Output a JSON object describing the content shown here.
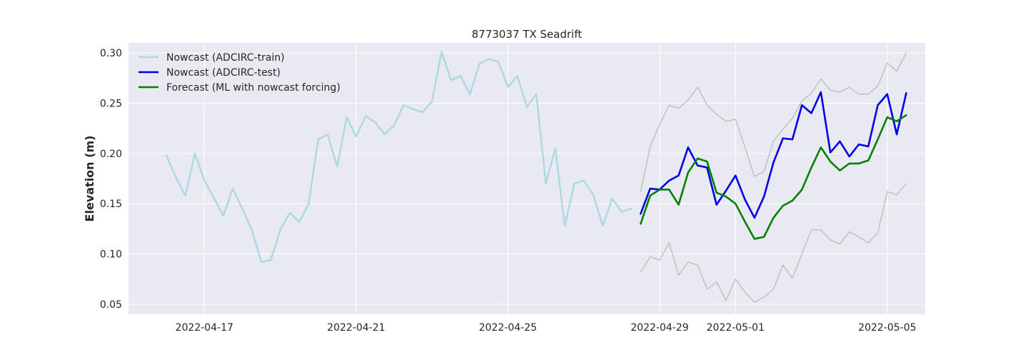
{
  "chart_data": {
    "type": "line",
    "title": "8773037 TX Seadrift",
    "xlabel": "",
    "ylabel": "Elevation (m)",
    "x_ticks": [
      "2022-04-17",
      "2022-04-21",
      "2022-04-25",
      "2022-04-29",
      "2022-05-01",
      "2022-05-05"
    ],
    "y_ticks": [
      "0.05",
      "0.10",
      "0.15",
      "0.20",
      "0.25",
      "0.30"
    ],
    "xlim": [
      "2022-04-15",
      "2022-05-06"
    ],
    "ylim": [
      0.04,
      0.31
    ],
    "grid": true,
    "legend_position": "top-left",
    "style": {
      "background": "#e9e9f1",
      "grid_color": "#ffffff"
    },
    "series": [
      {
        "name": "Nowcast (ADCIRC-train)",
        "color": "#add8e6",
        "width": 2.5,
        "in_legend": true,
        "x": [
          "2022-04-16 00:00",
          "2022-04-16 06:00",
          "2022-04-16 12:00",
          "2022-04-16 18:00",
          "2022-04-17 00:00",
          "2022-04-17 06:00",
          "2022-04-17 12:00",
          "2022-04-17 18:00",
          "2022-04-18 00:00",
          "2022-04-18 06:00",
          "2022-04-18 12:00",
          "2022-04-18 18:00",
          "2022-04-19 00:00",
          "2022-04-19 06:00",
          "2022-04-19 12:00",
          "2022-04-19 18:00",
          "2022-04-20 00:00",
          "2022-04-20 06:00",
          "2022-04-20 12:00",
          "2022-04-20 18:00",
          "2022-04-21 00:00",
          "2022-04-21 06:00",
          "2022-04-21 12:00",
          "2022-04-21 18:00",
          "2022-04-22 00:00",
          "2022-04-22 06:00",
          "2022-04-22 12:00",
          "2022-04-22 18:00",
          "2022-04-23 00:00",
          "2022-04-23 06:00",
          "2022-04-23 12:00",
          "2022-04-23 18:00",
          "2022-04-24 00:00",
          "2022-04-24 06:00",
          "2022-04-24 12:00",
          "2022-04-24 18:00",
          "2022-04-25 00:00",
          "2022-04-25 06:00",
          "2022-04-25 12:00",
          "2022-04-25 18:00",
          "2022-04-26 00:00",
          "2022-04-26 06:00",
          "2022-04-26 12:00",
          "2022-04-26 18:00",
          "2022-04-27 00:00",
          "2022-04-27 06:00",
          "2022-04-27 12:00",
          "2022-04-27 18:00",
          "2022-04-28 00:00",
          "2022-04-28 06:00"
        ],
        "values": [
          0.198,
          0.176,
          0.158,
          0.2,
          0.173,
          0.156,
          0.138,
          0.165,
          0.145,
          0.124,
          0.092,
          0.094,
          0.124,
          0.141,
          0.132,
          0.15,
          0.214,
          0.219,
          0.187,
          0.236,
          0.217,
          0.237,
          0.231,
          0.219,
          0.228,
          0.248,
          0.244,
          0.241,
          0.252,
          0.301,
          0.273,
          0.277,
          0.259,
          0.289,
          0.294,
          0.291,
          0.266,
          0.277,
          0.246,
          0.259,
          0.17,
          0.205,
          0.128,
          0.17,
          0.173,
          0.159,
          0.128,
          0.155,
          0.142,
          0.145
        ]
      },
      {
        "name": "Upper bound",
        "color": "#b7b7bb",
        "width": 1.2,
        "in_legend": false,
        "x": [
          "2022-04-28 12:00",
          "2022-04-28 18:00",
          "2022-04-29 00:00",
          "2022-04-29 06:00",
          "2022-04-29 12:00",
          "2022-04-29 18:00",
          "2022-04-30 00:00",
          "2022-04-30 06:00",
          "2022-04-30 12:00",
          "2022-04-30 18:00",
          "2022-05-01 00:00",
          "2022-05-01 06:00",
          "2022-05-01 12:00",
          "2022-05-01 18:00",
          "2022-05-02 00:00",
          "2022-05-02 06:00",
          "2022-05-02 12:00",
          "2022-05-02 18:00",
          "2022-05-03 00:00",
          "2022-05-03 06:00",
          "2022-05-03 12:00",
          "2022-05-03 18:00",
          "2022-05-04 00:00",
          "2022-05-04 06:00",
          "2022-05-04 12:00",
          "2022-05-04 18:00",
          "2022-05-05 00:00",
          "2022-05-05 06:00",
          "2022-05-05 12:00"
        ],
        "values": [
          0.162,
          0.207,
          0.229,
          0.248,
          0.245,
          0.253,
          0.266,
          0.248,
          0.239,
          0.232,
          0.234,
          0.206,
          0.177,
          0.182,
          0.212,
          0.224,
          0.235,
          0.252,
          0.26,
          0.274,
          0.263,
          0.261,
          0.266,
          0.259,
          0.259,
          0.267,
          0.29,
          0.282,
          0.3
        ]
      },
      {
        "name": "Lower bound",
        "color": "#b7b7bb",
        "width": 1.2,
        "in_legend": false,
        "x": [
          "2022-04-28 12:00",
          "2022-04-28 18:00",
          "2022-04-29 00:00",
          "2022-04-29 06:00",
          "2022-04-29 12:00",
          "2022-04-29 18:00",
          "2022-04-30 00:00",
          "2022-04-30 06:00",
          "2022-04-30 12:00",
          "2022-04-30 18:00",
          "2022-05-01 00:00",
          "2022-05-01 06:00",
          "2022-05-01 12:00",
          "2022-05-01 18:00",
          "2022-05-02 00:00",
          "2022-05-02 06:00",
          "2022-05-02 12:00",
          "2022-05-02 18:00",
          "2022-05-03 00:00",
          "2022-05-03 06:00",
          "2022-05-03 12:00",
          "2022-05-03 18:00",
          "2022-05-04 00:00",
          "2022-05-04 06:00",
          "2022-05-04 12:00",
          "2022-05-04 18:00",
          "2022-05-05 00:00",
          "2022-05-05 06:00",
          "2022-05-05 12:00"
        ],
        "values": [
          0.082,
          0.097,
          0.094,
          0.111,
          0.079,
          0.092,
          0.089,
          0.065,
          0.072,
          0.054,
          0.075,
          0.062,
          0.052,
          0.057,
          0.065,
          0.089,
          0.076,
          0.1,
          0.124,
          0.124,
          0.114,
          0.11,
          0.122,
          0.117,
          0.111,
          0.121,
          0.162,
          0.159,
          0.17
        ]
      },
      {
        "name": "Nowcast (ADCIRC-test)",
        "color": "#0000e6",
        "width": 2.6,
        "in_legend": true,
        "x": [
          "2022-04-28 12:00",
          "2022-04-28 18:00",
          "2022-04-29 00:00",
          "2022-04-29 06:00",
          "2022-04-29 12:00",
          "2022-04-29 18:00",
          "2022-04-30 00:00",
          "2022-04-30 06:00",
          "2022-04-30 12:00",
          "2022-04-30 18:00",
          "2022-05-01 00:00",
          "2022-05-01 06:00",
          "2022-05-01 12:00",
          "2022-05-01 18:00",
          "2022-05-02 00:00",
          "2022-05-02 06:00",
          "2022-05-02 12:00",
          "2022-05-02 18:00",
          "2022-05-03 00:00",
          "2022-05-03 06:00",
          "2022-05-03 12:00",
          "2022-05-03 18:00",
          "2022-05-04 00:00",
          "2022-05-04 06:00",
          "2022-05-04 12:00",
          "2022-05-04 18:00",
          "2022-05-05 00:00",
          "2022-05-05 06:00",
          "2022-05-05 12:00"
        ],
        "values": [
          0.14,
          0.165,
          0.164,
          0.173,
          0.178,
          0.206,
          0.188,
          0.186,
          0.149,
          0.163,
          0.178,
          0.154,
          0.136,
          0.157,
          0.191,
          0.215,
          0.214,
          0.248,
          0.24,
          0.261,
          0.201,
          0.212,
          0.197,
          0.209,
          0.207,
          0.248,
          0.259,
          0.219,
          0.26
        ]
      },
      {
        "name": "Forecast (ML with nowcast forcing)",
        "color": "#008000",
        "width": 2.6,
        "in_legend": true,
        "x": [
          "2022-04-28 12:00",
          "2022-04-28 18:00",
          "2022-04-29 00:00",
          "2022-04-29 06:00",
          "2022-04-29 12:00",
          "2022-04-29 18:00",
          "2022-04-30 00:00",
          "2022-04-30 06:00",
          "2022-04-30 12:00",
          "2022-04-30 18:00",
          "2022-05-01 00:00",
          "2022-05-01 06:00",
          "2022-05-01 12:00",
          "2022-05-01 18:00",
          "2022-05-02 00:00",
          "2022-05-02 06:00",
          "2022-05-02 12:00",
          "2022-05-02 18:00",
          "2022-05-03 00:00",
          "2022-05-03 06:00",
          "2022-05-03 12:00",
          "2022-05-03 18:00",
          "2022-05-04 00:00",
          "2022-05-04 06:00",
          "2022-05-04 12:00",
          "2022-05-04 18:00",
          "2022-05-05 00:00",
          "2022-05-05 06:00",
          "2022-05-05 12:00"
        ],
        "values": [
          0.13,
          0.158,
          0.164,
          0.164,
          0.149,
          0.181,
          0.195,
          0.192,
          0.161,
          0.157,
          0.15,
          0.132,
          0.115,
          0.117,
          0.136,
          0.148,
          0.153,
          0.164,
          0.186,
          0.206,
          0.192,
          0.183,
          0.19,
          0.19,
          0.193,
          0.214,
          0.236,
          0.232,
          0.238
        ]
      }
    ]
  }
}
